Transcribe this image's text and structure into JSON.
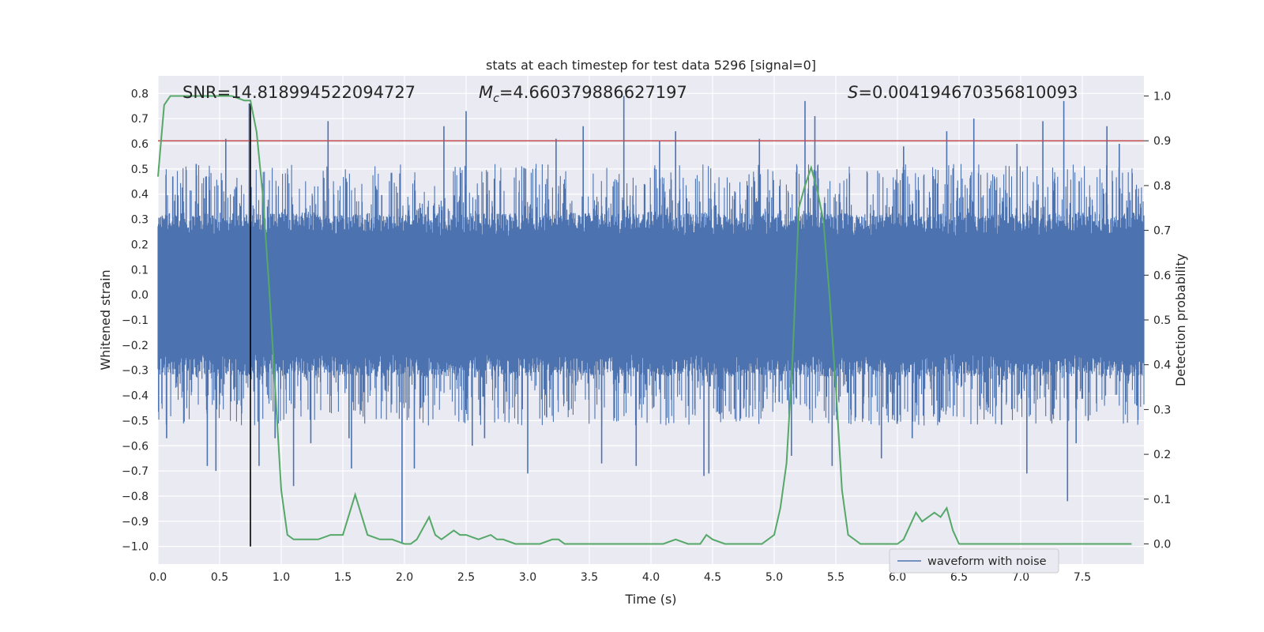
{
  "chart_data": {
    "type": "line",
    "title": "stats at each timestep for test data 5296 [signal=0]",
    "xlabel": "Time (s)",
    "ylabel_left": "Whitened strain",
    "ylabel_right": "Detection probability",
    "xlim": [
      0,
      8
    ],
    "ylim_left": [
      -1.07,
      0.87
    ],
    "ylim_right": [
      -0.045,
      1.045
    ],
    "x_ticks": [
      0.0,
      0.5,
      1.0,
      1.5,
      2.0,
      2.5,
      3.0,
      3.5,
      4.0,
      4.5,
      5.0,
      5.5,
      6.0,
      6.5,
      7.0,
      7.5
    ],
    "x_tick_labels": [
      "0.0",
      "0.5",
      "1.0",
      "1.5",
      "2.0",
      "2.5",
      "3.0",
      "3.5",
      "4.0",
      "4.5",
      "5.0",
      "5.5",
      "6.0",
      "6.5",
      "7.0",
      "7.5"
    ],
    "y_left_ticks": [
      0.8,
      0.7,
      0.6,
      0.5,
      0.4,
      0.3,
      0.2,
      0.1,
      0.0,
      -0.1,
      -0.2,
      -0.3,
      -0.4,
      -0.5,
      -0.6,
      -0.7,
      -0.8,
      -0.9,
      -1.0
    ],
    "y_left_tick_labels": [
      "0.8",
      "0.7",
      "0.6",
      "0.5",
      "0.4",
      "0.3",
      "0.2",
      "0.1",
      "0.0",
      "−0.1",
      "−0.2",
      "−0.3",
      "−0.4",
      "−0.5",
      "−0.6",
      "−0.7",
      "−0.8",
      "−0.9",
      "−1.0"
    ],
    "y_right_ticks": [
      1.0,
      0.9,
      0.8,
      0.7,
      0.6,
      0.5,
      0.4,
      0.3,
      0.2,
      0.1,
      0.0
    ],
    "y_right_tick_labels": [
      "1.0",
      "0.9",
      "0.8",
      "0.7",
      "0.6",
      "0.5",
      "0.4",
      "0.3",
      "0.2",
      "0.1",
      "0.0"
    ],
    "grid": true,
    "legend": {
      "location": "lower-right",
      "entries": [
        "waveform with noise"
      ]
    },
    "annotations": {
      "snr": "SNR=14.818994522094727",
      "mc_prefix": "M",
      "mc_sub": "c",
      "mc_value": "=4.660379886627197",
      "s_prefix": "S",
      "s_value": "=0.004194670356810093"
    },
    "threshold_line": {
      "value": 0.9,
      "axis": "right",
      "color": "#c44e52"
    },
    "marker_line": {
      "x": 0.75,
      "y_from": -1.0,
      "y_to": 0.76,
      "color": "#000000"
    },
    "waveform": {
      "name": "waveform with noise",
      "color": "#4c72b0",
      "typical_range": [
        -0.3,
        0.3
      ],
      "spikes": [
        [
          0.07,
          -0.57
        ],
        [
          0.12,
          0.47
        ],
        [
          0.31,
          0.52
        ],
        [
          0.4,
          -0.68
        ],
        [
          0.47,
          -0.7
        ],
        [
          0.55,
          0.62
        ],
        [
          0.74,
          0.76
        ],
        [
          0.82,
          -0.68
        ],
        [
          0.95,
          -0.57
        ],
        [
          1.1,
          -0.76
        ],
        [
          1.24,
          -0.59
        ],
        [
          1.38,
          0.69
        ],
        [
          1.55,
          -0.57
        ],
        [
          1.57,
          -0.69
        ],
        [
          1.98,
          -0.99
        ],
        [
          2.08,
          -0.69
        ],
        [
          2.32,
          0.67
        ],
        [
          2.5,
          0.73
        ],
        [
          2.55,
          -0.6
        ],
        [
          2.65,
          -0.57
        ],
        [
          3.0,
          -0.71
        ],
        [
          3.23,
          0.62
        ],
        [
          3.45,
          0.67
        ],
        [
          3.6,
          -0.67
        ],
        [
          3.78,
          0.79
        ],
        [
          3.88,
          -0.68
        ],
        [
          4.07,
          0.61
        ],
        [
          4.2,
          0.65
        ],
        [
          4.43,
          -0.72
        ],
        [
          4.47,
          -0.71
        ],
        [
          4.88,
          0.62
        ],
        [
          5.14,
          -0.64
        ],
        [
          5.25,
          0.77
        ],
        [
          5.33,
          0.71
        ],
        [
          5.47,
          -0.68
        ],
        [
          5.87,
          -0.65
        ],
        [
          6.05,
          0.59
        ],
        [
          6.12,
          -0.57
        ],
        [
          6.4,
          0.65
        ],
        [
          6.62,
          0.7
        ],
        [
          6.97,
          0.6
        ],
        [
          7.05,
          -0.71
        ],
        [
          7.18,
          0.69
        ],
        [
          7.35,
          0.77
        ],
        [
          7.38,
          -0.82
        ],
        [
          7.45,
          -0.59
        ],
        [
          7.7,
          0.67
        ],
        [
          7.8,
          0.6
        ]
      ]
    },
    "detection_probability": {
      "color": "#55a868",
      "x": [
        0.0,
        0.05,
        0.1,
        0.2,
        0.3,
        0.4,
        0.5,
        0.6,
        0.7,
        0.75,
        0.8,
        0.85,
        0.9,
        0.95,
        1.0,
        1.05,
        1.1,
        1.2,
        1.3,
        1.4,
        1.5,
        1.6,
        1.7,
        1.8,
        1.9,
        2.0,
        2.05,
        2.1,
        2.2,
        2.25,
        2.3,
        2.4,
        2.45,
        2.5,
        2.6,
        2.7,
        2.75,
        2.8,
        2.9,
        3.0,
        3.1,
        3.2,
        3.25,
        3.3,
        3.4,
        3.5,
        3.6,
        3.7,
        3.8,
        3.9,
        4.0,
        4.1,
        4.2,
        4.3,
        4.4,
        4.45,
        4.5,
        4.6,
        4.7,
        4.8,
        4.9,
        5.0,
        5.05,
        5.1,
        5.15,
        5.2,
        5.25,
        5.3,
        5.35,
        5.4,
        5.45,
        5.5,
        5.55,
        5.6,
        5.7,
        5.8,
        5.9,
        6.0,
        6.05,
        6.1,
        6.15,
        6.2,
        6.3,
        6.35,
        6.4,
        6.45,
        6.5,
        6.6,
        6.7,
        6.8,
        6.9,
        7.0,
        7.1,
        7.2,
        7.3,
        7.4,
        7.5,
        7.6,
        7.7,
        7.8,
        7.9
      ],
      "y": [
        0.82,
        0.98,
        1.0,
        1.0,
        1.0,
        1.0,
        1.0,
        1.0,
        0.99,
        0.99,
        0.92,
        0.78,
        0.58,
        0.35,
        0.12,
        0.02,
        0.01,
        0.01,
        0.01,
        0.02,
        0.02,
        0.11,
        0.02,
        0.01,
        0.01,
        0.0,
        0.0,
        0.01,
        0.06,
        0.02,
        0.01,
        0.03,
        0.02,
        0.02,
        0.01,
        0.02,
        0.01,
        0.01,
        0.0,
        0.0,
        0.0,
        0.01,
        0.01,
        0.0,
        0.0,
        0.0,
        0.0,
        0.0,
        0.0,
        0.0,
        0.0,
        0.0,
        0.01,
        0.0,
        0.0,
        0.02,
        0.01,
        0.0,
        0.0,
        0.0,
        0.0,
        0.02,
        0.08,
        0.18,
        0.42,
        0.75,
        0.8,
        0.84,
        0.79,
        0.72,
        0.55,
        0.35,
        0.12,
        0.02,
        0.0,
        0.0,
        0.0,
        0.0,
        0.01,
        0.04,
        0.07,
        0.05,
        0.07,
        0.06,
        0.08,
        0.03,
        0.0,
        0.0,
        0.0,
        0.0,
        0.0,
        0.0,
        0.0,
        0.0,
        0.0,
        0.0,
        0.0,
        0.0,
        0.0,
        0.0,
        0.0
      ]
    }
  }
}
